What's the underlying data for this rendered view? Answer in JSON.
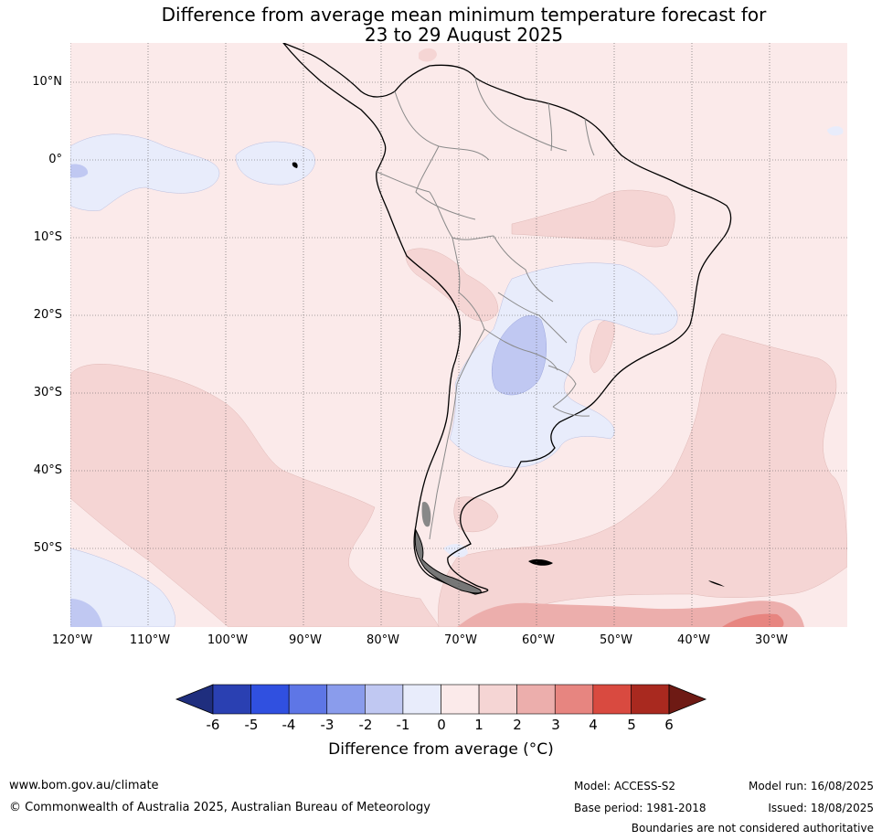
{
  "title_line1": "Difference from average mean minimum temperature forecast for",
  "title_line2": "23 to 29 August 2025",
  "lat_labels": [
    "10°N",
    "0°",
    "10°S",
    "20°S",
    "30°S",
    "40°S",
    "50°S"
  ],
  "lon_labels": [
    "120°W",
    "110°W",
    "100°W",
    "90°W",
    "80°W",
    "70°W",
    "60°W",
    "50°W",
    "40°W",
    "30°W"
  ],
  "colorbar": {
    "ticks": [
      "-6",
      "-5",
      "-4",
      "-3",
      "-2",
      "-1",
      "0",
      "1",
      "2",
      "3",
      "4",
      "5",
      "6"
    ],
    "colors": [
      "#1f2e7e",
      "#2a40b2",
      "#3050e0",
      "#5e76e6",
      "#8a9cec",
      "#c0c8f2",
      "#e8ecfb",
      "#fbeaea",
      "#f5d5d4",
      "#ecaeac",
      "#e78580",
      "#d94a40",
      "#a9291f",
      "#6e1a14"
    ],
    "label": "Difference from average (°C)"
  },
  "footer": {
    "website": "www.bom.gov.au/climate",
    "copyright": "© Commonwealth of Australia 2025, Australian Bureau of Meteorology",
    "model": "Model: ACCESS-S2",
    "base_period": "Base period: 1981-2018",
    "model_run": "Model run: 16/08/2025",
    "issued": "Issued: 18/08/2025",
    "disclaimer": "Boundaries are not considered authoritative"
  }
}
